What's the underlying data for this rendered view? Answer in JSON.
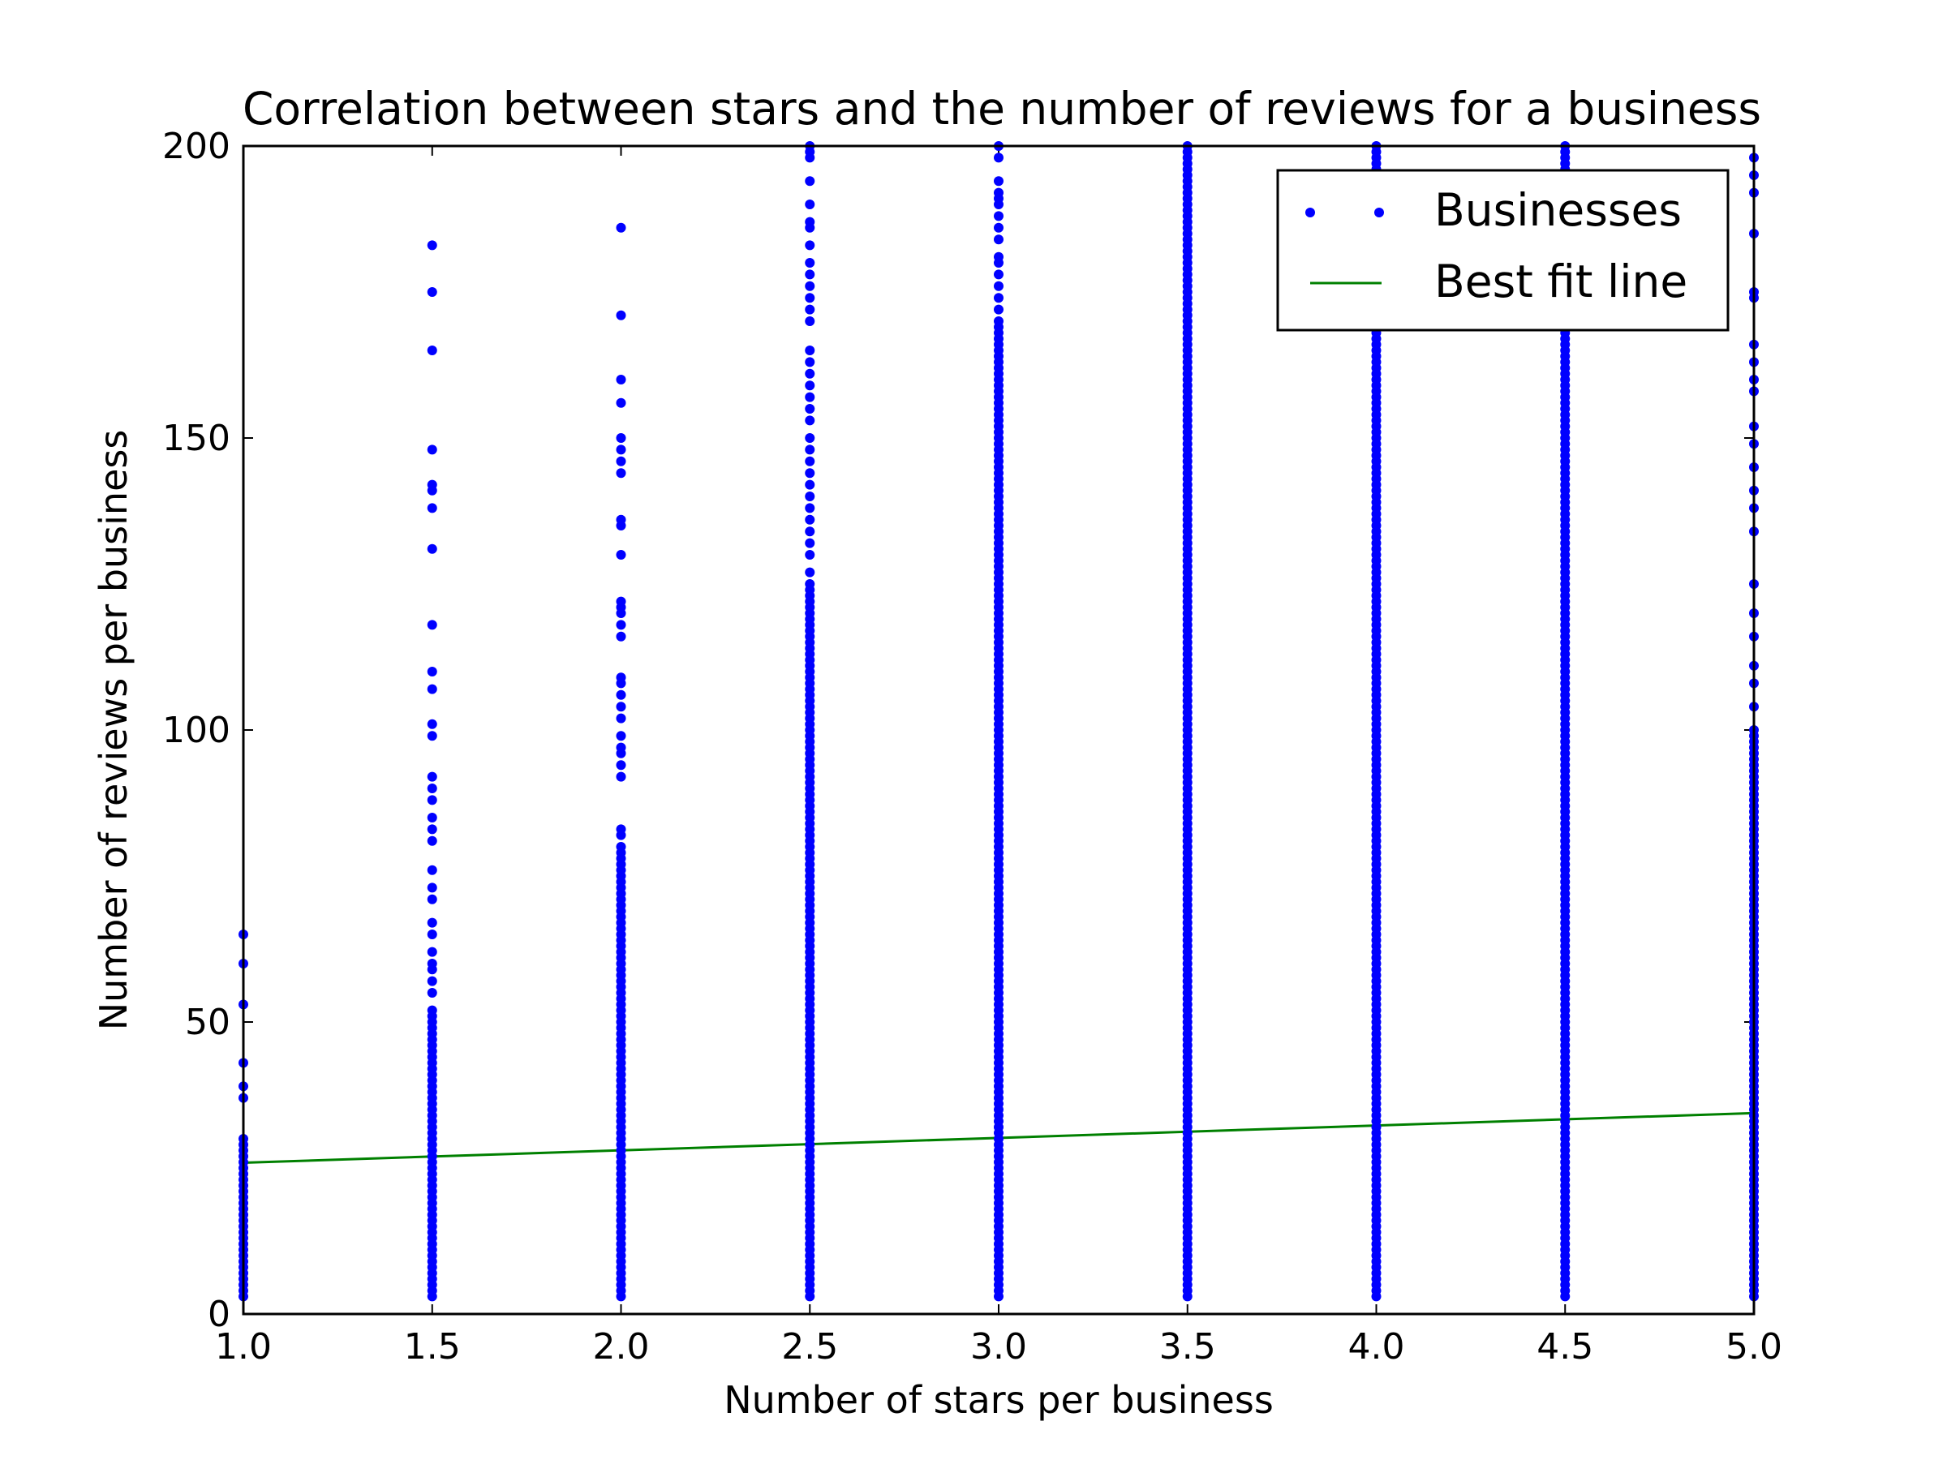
{
  "chart_data": {
    "type": "scatter",
    "title": "Correlation between stars and the number of reviews for a business",
    "xlabel": "Number of stars per business",
    "ylabel": "Number of reviews per business",
    "xlim": [
      1.0,
      5.0
    ],
    "ylim": [
      0,
      200
    ],
    "x_ticks": [
      "1.0",
      "1.5",
      "2.0",
      "2.5",
      "3.0",
      "3.5",
      "4.0",
      "4.5",
      "5.0"
    ],
    "y_ticks": [
      "0",
      "50",
      "100",
      "150",
      "200"
    ],
    "grid": false,
    "legend_position": "top-right",
    "series": [
      {
        "name": "Businesses",
        "kind": "scatter",
        "color": "#0000ff",
        "groups": [
          {
            "x": 1.0,
            "dense_to": 30,
            "sparse": [
              37,
              39,
              43,
              53,
              60,
              65
            ]
          },
          {
            "x": 1.5,
            "dense_to": 52,
            "sparse": [
              55,
              57,
              59,
              60,
              62,
              65,
              67,
              71,
              73,
              76,
              81,
              83,
              85,
              88,
              90,
              92,
              99,
              101,
              107,
              110,
              118,
              131,
              138,
              141,
              142,
              148,
              165,
              175,
              183
            ]
          },
          {
            "x": 2.0,
            "dense_to": 80,
            "sparse": [
              82,
              83,
              92,
              94,
              96,
              97,
              99,
              102,
              104,
              106,
              108,
              109,
              116,
              118,
              120,
              121,
              122,
              130,
              135,
              136,
              144,
              146,
              148,
              150,
              156,
              160,
              171,
              186
            ]
          },
          {
            "x": 2.5,
            "dense_to": 125,
            "sparse": [
              127,
              130,
              132,
              134,
              136,
              138,
              140,
              142,
              144,
              146,
              148,
              150,
              153,
              155,
              157,
              159,
              161,
              163,
              165,
              170,
              172,
              174,
              176,
              178,
              180,
              183,
              186,
              187,
              190,
              194,
              198,
              199,
              200
            ]
          },
          {
            "x": 3.0,
            "dense_to": 170,
            "sparse": [
              172,
              174,
              176,
              178,
              180,
              181,
              184,
              186,
              188,
              190,
              191,
              192,
              194,
              198,
              200
            ]
          },
          {
            "x": 3.5,
            "dense_to": 200,
            "sparse": []
          },
          {
            "x": 4.0,
            "dense_to": 200,
            "sparse": []
          },
          {
            "x": 4.5,
            "dense_to": 200,
            "sparse": []
          },
          {
            "x": 5.0,
            "dense_to": 100,
            "sparse": [
              104,
              108,
              111,
              116,
              120,
              125,
              134,
              138,
              141,
              145,
              149,
              152,
              158,
              160,
              163,
              166,
              174,
              175,
              185,
              192,
              195,
              198
            ]
          }
        ]
      },
      {
        "name": "Best fit line",
        "kind": "line",
        "color": "#008000",
        "x": [
          1.0,
          5.0
        ],
        "y": [
          25.9,
          34.4
        ]
      }
    ]
  }
}
